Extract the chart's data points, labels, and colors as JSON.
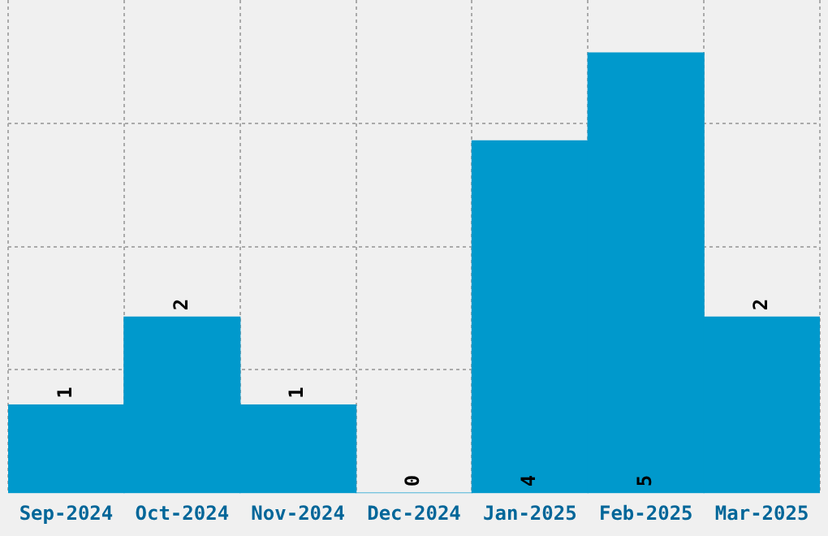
{
  "chart_data": {
    "type": "bar",
    "categories": [
      "Sep-2024",
      "Oct-2024",
      "Nov-2024",
      "Dec-2024",
      "Jan-2025",
      "Feb-2025",
      "Mar-2025"
    ],
    "values": [
      1,
      2,
      1,
      0,
      4,
      5,
      2
    ],
    "color": "#0099cc",
    "data_labels": true,
    "grid": true,
    "ylim": [
      0,
      5.6
    ],
    "yticks": [
      {
        "value": 1.4,
        "label": null
      },
      {
        "value": 2.8,
        "label": null
      },
      {
        "value": 4.2,
        "label": null
      }
    ],
    "tick_labels": "x"
  }
}
